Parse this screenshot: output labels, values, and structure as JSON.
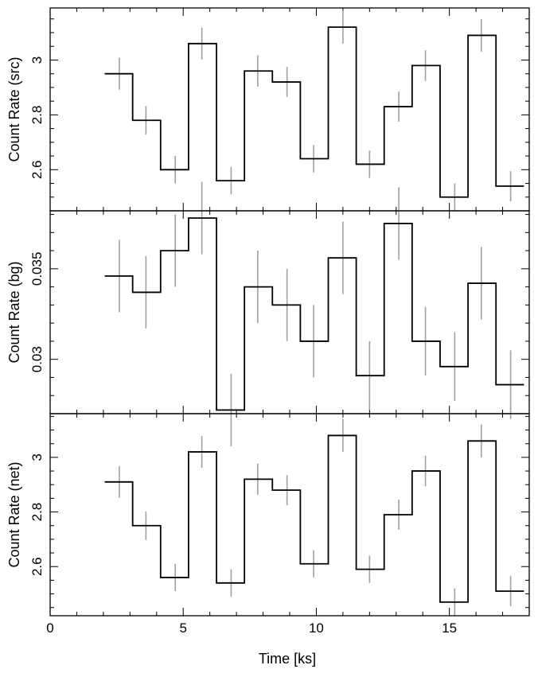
{
  "figure": {
    "xlabel": "Time [ks]",
    "xlim": [
      0,
      18
    ],
    "x_ticks": [
      0,
      5,
      10,
      15
    ],
    "x_tick_labels": [
      "0",
      "5",
      "10",
      "15"
    ],
    "colors": {
      "step_line": "#000000",
      "error_bar": "#a0a0a0",
      "axes": "#000000"
    }
  },
  "chart_data": [
    {
      "type": "line",
      "name": "src",
      "ylabel": "Count Rate (src)",
      "ylim": [
        2.45,
        3.19
      ],
      "y_ticks": [
        2.6,
        2.8,
        3.0
      ],
      "y_tick_labels": [
        "2.6",
        "2.8",
        "3"
      ],
      "bin_edges": [
        2.05,
        3.1,
        4.15,
        5.2,
        6.25,
        7.3,
        8.35,
        9.4,
        10.45,
        11.5,
        12.55,
        13.6,
        14.65,
        15.7,
        16.75,
        17.8
      ],
      "x": [
        2.6,
        3.6,
        4.7,
        5.7,
        6.8,
        7.8,
        8.9,
        9.9,
        11.0,
        12.0,
        13.1,
        14.1,
        15.2,
        16.2,
        17.3
      ],
      "values": [
        2.95,
        2.78,
        2.6,
        3.06,
        2.56,
        2.96,
        2.92,
        2.64,
        3.12,
        2.62,
        2.83,
        2.98,
        2.5,
        3.09,
        2.54
      ],
      "errors": [
        0.058,
        0.052,
        0.05,
        0.058,
        0.05,
        0.057,
        0.055,
        0.05,
        0.06,
        0.05,
        0.055,
        0.056,
        0.05,
        0.06,
        0.055
      ]
    },
    {
      "type": "line",
      "name": "bg",
      "ylabel": "Count Rate (bg)",
      "ylim": [
        0.027,
        0.0382
      ],
      "y_ticks": [
        0.03,
        0.035
      ],
      "y_tick_labels": [
        "0.03",
        "0.035"
      ],
      "bin_edges": [
        2.05,
        3.1,
        4.15,
        5.2,
        6.25,
        7.3,
        8.35,
        9.4,
        10.45,
        11.5,
        12.55,
        13.6,
        14.65,
        15.7,
        16.75,
        17.8
      ],
      "x": [
        2.6,
        3.6,
        4.7,
        5.7,
        6.8,
        7.8,
        8.9,
        9.9,
        11.0,
        12.0,
        13.1,
        14.1,
        15.2,
        16.2,
        17.3
      ],
      "values": [
        0.0346,
        0.0337,
        0.036,
        0.0378,
        0.0272,
        0.034,
        0.033,
        0.031,
        0.0356,
        0.0291,
        0.0375,
        0.031,
        0.0296,
        0.0342,
        0.0286
      ],
      "errors": [
        0.002,
        0.002,
        0.002,
        0.002,
        0.002,
        0.002,
        0.002,
        0.002,
        0.002,
        0.0019,
        0.002,
        0.0019,
        0.0019,
        0.002,
        0.0019
      ]
    },
    {
      "type": "line",
      "name": "net",
      "ylabel": "Count Rate (net)",
      "ylim": [
        2.42,
        3.16
      ],
      "y_ticks": [
        2.6,
        2.8,
        3.0
      ],
      "y_tick_labels": [
        "2.6",
        "2.8",
        "3"
      ],
      "bin_edges": [
        2.05,
        3.1,
        4.15,
        5.2,
        6.25,
        7.3,
        8.35,
        9.4,
        10.45,
        11.5,
        12.55,
        13.6,
        14.65,
        15.7,
        16.75,
        17.8
      ],
      "x": [
        2.6,
        3.6,
        4.7,
        5.7,
        6.8,
        7.8,
        8.9,
        9.9,
        11.0,
        12.0,
        13.1,
        14.1,
        15.2,
        16.2,
        17.3
      ],
      "values": [
        2.91,
        2.75,
        2.56,
        3.02,
        2.54,
        2.92,
        2.88,
        2.61,
        3.08,
        2.59,
        2.79,
        2.95,
        2.47,
        3.06,
        2.51
      ],
      "errors": [
        0.058,
        0.052,
        0.05,
        0.058,
        0.05,
        0.057,
        0.055,
        0.05,
        0.06,
        0.05,
        0.055,
        0.056,
        0.05,
        0.06,
        0.055
      ]
    }
  ]
}
